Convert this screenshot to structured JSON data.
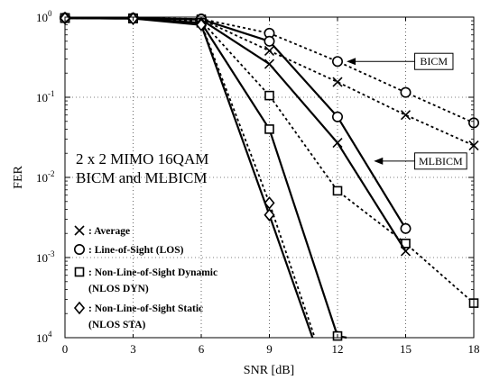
{
  "chart_data": {
    "type": "line",
    "xlabel": "SNR [dB]",
    "ylabel": "FER",
    "xlim": [
      0,
      18
    ],
    "ylim": [
      0.0001,
      1
    ],
    "yscale": "log",
    "grid": true,
    "x_ticks": [
      "0",
      "3",
      "6",
      "9",
      "12",
      "15",
      "18"
    ],
    "y_ticks": [
      {
        "base": "10",
        "exp": "0"
      },
      {
        "base": "10",
        "exp": "-1"
      },
      {
        "base": "10",
        "exp": "-2"
      },
      {
        "base": "10",
        "exp": "-3"
      },
      {
        "base": "10",
        "exp": "4"
      }
    ],
    "annotation_lines": [
      "2 x 2 MIMO 16QAM",
      "BICM and MLBICM"
    ],
    "callouts": [
      {
        "label": "BICM",
        "target": [
          12.4,
          0.28
        ],
        "box": [
          15.4,
          0.28
        ]
      },
      {
        "label": "MLBICM",
        "target": [
          13.6,
          0.016
        ],
        "box": [
          15.4,
          0.016
        ]
      }
    ],
    "legend": [
      {
        "marker": "x",
        "label": ": Average"
      },
      {
        "marker": "circle",
        "label": ": Line-of-Sight (LOS)"
      },
      {
        "marker": "square",
        "label": ": Non-Line-of-Sight Dynamic"
      },
      {
        "marker": "none",
        "label": "(NLOS DYN)"
      },
      {
        "marker": "diamond",
        "label": ": Non-Line-of-Sight Static"
      },
      {
        "marker": "none",
        "label": "(NLOS STA)"
      }
    ],
    "series": [
      {
        "marker": "x",
        "dash": true,
        "x": [
          0,
          3,
          6,
          9,
          12,
          15,
          18
        ],
        "y": [
          0.98,
          0.97,
          0.94,
          0.38,
          0.155,
          0.06,
          0.025
        ]
      },
      {
        "marker": "circle",
        "dash": true,
        "x": [
          0,
          3,
          6,
          9,
          12,
          15,
          18
        ],
        "y": [
          0.98,
          0.97,
          0.95,
          0.63,
          0.28,
          0.115,
          0.048
        ]
      },
      {
        "marker": "square",
        "dash": true,
        "x": [
          0,
          3,
          6,
          9,
          12,
          15,
          18
        ],
        "y": [
          0.97,
          0.96,
          0.9,
          0.105,
          0.0068,
          0.0015,
          0.00027
        ]
      },
      {
        "marker": "x",
        "dash": false,
        "x": [
          0,
          3,
          6,
          9,
          12,
          15
        ],
        "y": [
          0.98,
          0.97,
          0.93,
          0.26,
          0.027,
          0.0012
        ]
      },
      {
        "marker": "circle",
        "dash": false,
        "x": [
          0,
          3,
          6,
          9,
          12,
          15
        ],
        "y": [
          0.98,
          0.97,
          0.94,
          0.5,
          0.057,
          0.0023
        ]
      },
      {
        "marker": "square",
        "dash": false,
        "x": [
          0,
          3,
          6,
          9,
          12,
          12.4
        ],
        "y": [
          0.97,
          0.96,
          0.85,
          0.04,
          0.000105,
          0.0001
        ]
      },
      {
        "marker": "diamond",
        "dash": true,
        "x": [
          0,
          3,
          6,
          9,
          11
        ],
        "y": [
          0.97,
          0.96,
          0.83,
          0.0048,
          0.0001
        ]
      },
      {
        "marker": "diamond",
        "dash": false,
        "x": [
          0,
          3,
          6,
          9,
          10.9
        ],
        "y": [
          0.97,
          0.96,
          0.8,
          0.0034,
          0.0001
        ]
      }
    ]
  }
}
